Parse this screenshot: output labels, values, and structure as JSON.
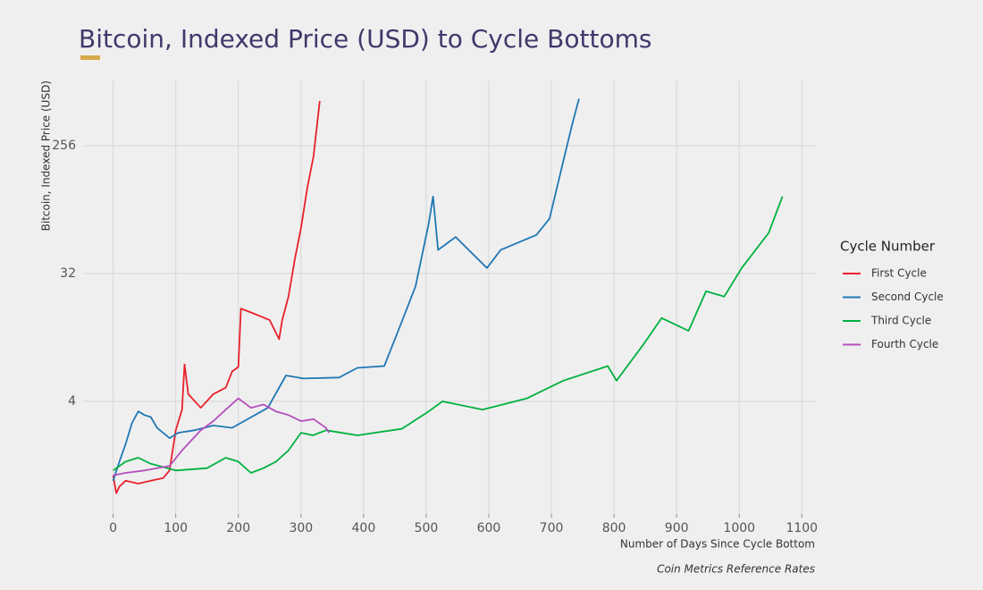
{
  "chart_data": {
    "type": "line",
    "title": "Bitcoin, Indexed Price (USD) to Cycle Bottoms",
    "x_label": "Number of Days Since Cycle Bottom",
    "y_label": "Bitcoin, Indexed Price (USD)",
    "source": "Coin Metrics Reference Rates",
    "legend_title": "Cycle Number",
    "legend_position": "right",
    "log_scale_y": true,
    "grid": true,
    "xlim": [
      -48,
      1121
    ],
    "ylim": [
      0.64,
      740
    ],
    "xticks": [
      0,
      100,
      200,
      300,
      400,
      500,
      600,
      700,
      800,
      900,
      1000,
      1100
    ],
    "yticks": [
      4,
      32,
      256
    ],
    "series": [
      {
        "name": "First Cycle",
        "color": "#e8212b",
        "x": [
          0,
          5,
          10,
          20,
          40,
          60,
          80,
          90,
          100,
          110,
          114,
          120,
          140,
          160,
          180,
          190,
          200,
          204,
          220,
          250,
          265,
          270,
          280,
          290,
          300,
          310,
          320,
          330
        ],
        "values": [
          1.2,
          0.9,
          1.0,
          1.1,
          1.05,
          1.1,
          1.15,
          1.3,
          2.5,
          3.5,
          7.3,
          4.5,
          3.6,
          4.5,
          5.0,
          6.5,
          7.0,
          18.1,
          17,
          15,
          11,
          15,
          22,
          40,
          67,
          128,
          215,
          530
        ]
      },
      {
        "name": "Second Cycle",
        "color": "#1f78b4",
        "x": [
          0,
          10,
          20,
          30,
          40,
          50,
          60,
          70,
          90,
          104,
          130,
          160,
          190,
          247,
          276,
          304,
          361,
          390,
          433,
          461,
          483,
          504,
          511,
          519,
          547,
          597,
          619,
          676,
          697,
          719,
          733,
          744
        ],
        "values": [
          1.1,
          1.5,
          2.0,
          2.8,
          3.4,
          3.2,
          3.1,
          2.6,
          2.2,
          2.4,
          2.5,
          2.7,
          2.6,
          3.6,
          6.1,
          5.8,
          5.9,
          6.9,
          7.1,
          14.6,
          26,
          72,
          112,
          47,
          58,
          35,
          47,
          60,
          78,
          200,
          360,
          550
        ]
      },
      {
        "name": "Third Cycle",
        "color": "#00b140",
        "x": [
          0,
          20,
          40,
          60,
          100,
          150,
          180,
          200,
          220,
          240,
          260,
          280,
          300,
          319,
          340,
          390,
          461,
          504,
          526,
          590,
          661,
          719,
          790,
          804,
          847,
          876,
          919,
          947,
          976,
          1004,
          1047,
          1069
        ],
        "values": [
          1.3,
          1.5,
          1.6,
          1.45,
          1.3,
          1.35,
          1.6,
          1.5,
          1.25,
          1.35,
          1.5,
          1.8,
          2.4,
          2.3,
          2.5,
          2.3,
          2.56,
          3.4,
          4.0,
          3.5,
          4.2,
          5.6,
          7.1,
          5.6,
          10.1,
          15.5,
          12.6,
          24,
          22,
          35,
          62,
          112
        ]
      },
      {
        "name": "Fourth Cycle",
        "color": "#b44fbd",
        "x": [
          0,
          20,
          50,
          70,
          90,
          110,
          140,
          160,
          180,
          200,
          220,
          240,
          260,
          280,
          300,
          320,
          340,
          345
        ],
        "values": [
          1.2,
          1.25,
          1.3,
          1.35,
          1.4,
          1.8,
          2.5,
          2.9,
          3.5,
          4.2,
          3.6,
          3.8,
          3.4,
          3.2,
          2.9,
          3.0,
          2.6,
          2.4
        ]
      }
    ]
  }
}
